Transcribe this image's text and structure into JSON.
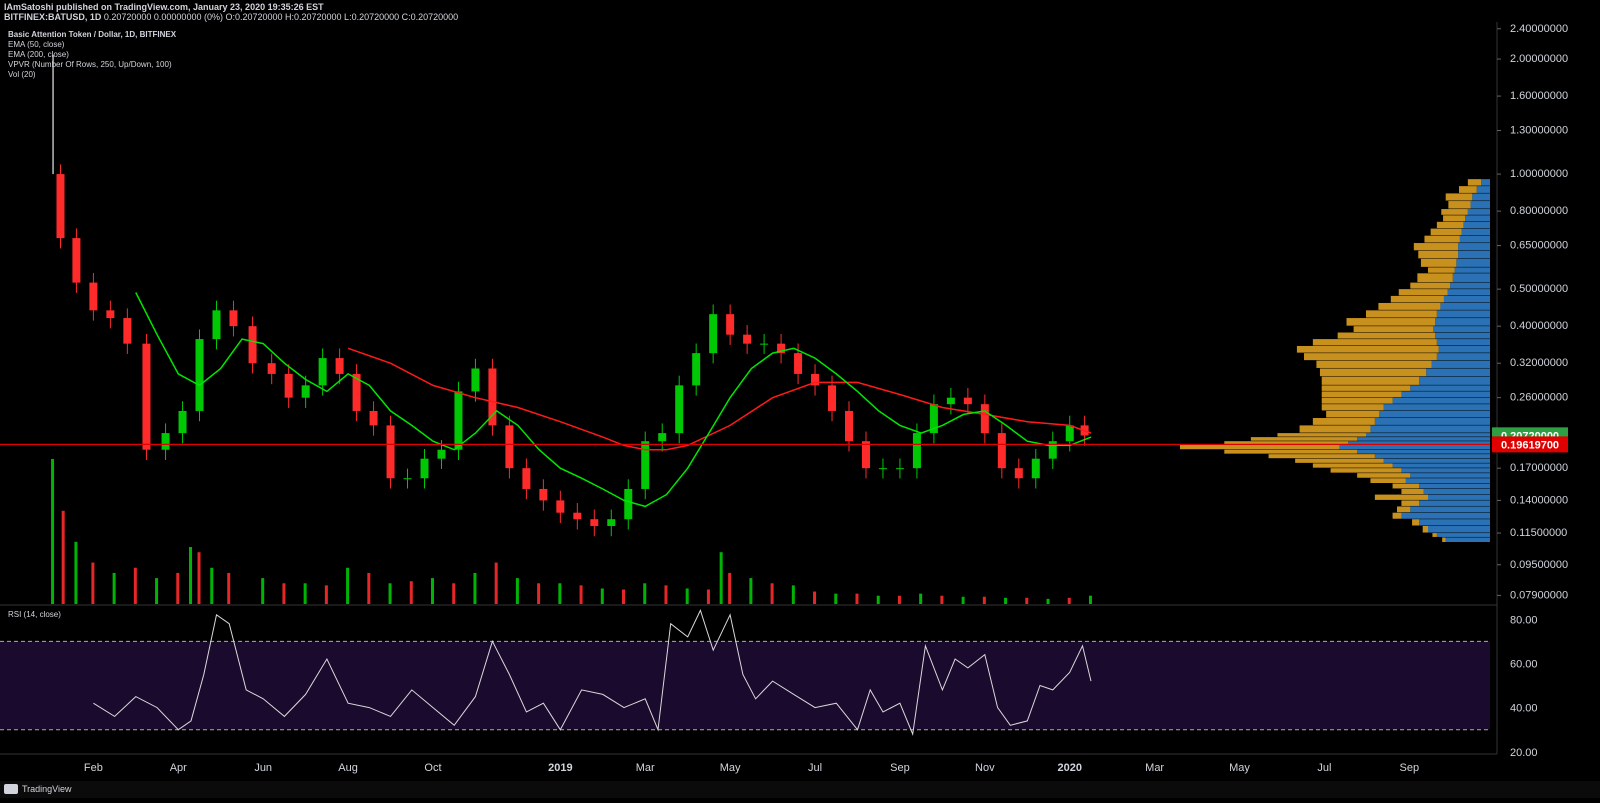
{
  "header": {
    "publisher_line": "IAmSatoshi published on TradingView.com, January 23, 2020 19:35:26 EST",
    "symbol": "BITFINEX:BATUSD, 1D",
    "ohlc": "0.20720000 0.00000000 (0%) O:0.20720000 H:0.20720000 L:0.20720000 C:0.20720000"
  },
  "indicators": {
    "title": "Basic Attention Token / Dollar, 1D, BITFINEX",
    "ema50": "EMA (50, close)",
    "ema200": "EMA (200, close)",
    "vpvr": "VPVR (Number Of Rows, 250, Up/Down, 100)",
    "vol": "Vol (20)",
    "rsi": "RSI (14, close)"
  },
  "footer": {
    "brand": "TradingView"
  },
  "colors": {
    "up": "#00c805",
    "down": "#ff2b2b",
    "ema50": "#00e600",
    "ema200": "#ff1a1a",
    "vpvr_up": "#2a72b5",
    "vpvr_down": "#c8901c",
    "last_price_badge": "#2ea043",
    "hline_badge": "#e00000",
    "rsi_band": "#1a0a2e",
    "rsi_line": "#d9d9d9"
  },
  "chart_data": {
    "type": "line",
    "price_axis": {
      "scale": "log",
      "ticks": [
        "2.40000000",
        "2.00000000",
        "1.60000000",
        "1.30000000",
        "1.00000000",
        "0.80000000",
        "0.65000000",
        "0.50000000",
        "0.40000000",
        "0.32000000",
        "0.26000000",
        "0.17000000",
        "0.14000000",
        "0.11500000",
        "0.09500000",
        "0.07900000"
      ],
      "tick_values": [
        2.4,
        2.0,
        1.6,
        1.3,
        1.0,
        0.8,
        0.65,
        0.5,
        0.4,
        0.32,
        0.26,
        0.17,
        0.14,
        0.115,
        0.095,
        0.079
      ],
      "range": [
        0.075,
        2.5
      ]
    },
    "time_axis": {
      "labels": [
        "Feb",
        "Apr",
        "Jun",
        "Aug",
        "Oct",
        "2019",
        "Mar",
        "May",
        "Jul",
        "Sep",
        "Nov",
        "2020",
        "Mar",
        "May",
        "Jul",
        "Sep"
      ],
      "label_months": [
        1,
        3,
        5,
        7,
        9,
        12,
        14,
        16,
        18,
        20,
        22,
        24,
        26,
        28,
        30,
        32
      ],
      "range_months": [
        -1.2,
        33.9
      ]
    },
    "price_series": {
      "x_months": [
        0.05,
        0.4,
        0.8,
        1.2,
        1.6,
        2.0,
        2.5,
        2.9,
        3.3,
        3.7,
        4.1,
        4.5,
        5.0,
        5.4,
        5.8,
        6.2,
        6.6,
        7.0,
        7.4,
        7.8,
        8.2,
        8.6,
        9.0,
        9.4,
        9.8,
        10.2,
        10.6,
        11.0,
        11.4,
        11.8,
        12.2,
        12.6,
        13.0,
        13.4,
        13.8,
        14.2,
        14.6,
        15.0,
        15.4,
        15.8,
        16.2,
        16.6,
        17.0,
        17.4,
        17.8,
        18.2,
        18.6,
        19.0,
        19.4,
        19.8,
        20.2,
        20.6,
        21.0,
        21.4,
        21.8,
        22.2,
        22.6,
        23.0,
        23.4,
        23.8,
        24.2,
        24.5
      ],
      "close": [
        1.0,
        0.68,
        0.52,
        0.44,
        0.42,
        0.36,
        0.19,
        0.21,
        0.24,
        0.37,
        0.44,
        0.4,
        0.32,
        0.3,
        0.26,
        0.28,
        0.33,
        0.3,
        0.24,
        0.22,
        0.16,
        0.16,
        0.18,
        0.19,
        0.27,
        0.31,
        0.22,
        0.17,
        0.15,
        0.14,
        0.13,
        0.125,
        0.12,
        0.125,
        0.15,
        0.2,
        0.21,
        0.28,
        0.34,
        0.43,
        0.38,
        0.36,
        0.36,
        0.34,
        0.3,
        0.28,
        0.24,
        0.2,
        0.17,
        0.17,
        0.17,
        0.21,
        0.25,
        0.26,
        0.25,
        0.21,
        0.17,
        0.16,
        0.18,
        0.2,
        0.22,
        0.207
      ]
    },
    "ema50": {
      "x_months": [
        2.0,
        2.5,
        3.0,
        3.5,
        4.0,
        4.5,
        5.0,
        5.5,
        6.0,
        6.5,
        7.0,
        7.5,
        8.0,
        8.5,
        9.0,
        9.5,
        10.0,
        10.5,
        11.0,
        11.5,
        12.0,
        12.5,
        13.0,
        13.5,
        14.0,
        14.5,
        15.0,
        15.5,
        16.0,
        16.5,
        17.0,
        17.5,
        18.0,
        18.5,
        19.0,
        19.5,
        20.0,
        20.5,
        21.0,
        21.5,
        22.0,
        22.5,
        23.0,
        23.5,
        24.0,
        24.5
      ],
      "values": [
        0.49,
        0.38,
        0.3,
        0.28,
        0.31,
        0.37,
        0.36,
        0.32,
        0.29,
        0.27,
        0.3,
        0.28,
        0.24,
        0.22,
        0.2,
        0.19,
        0.21,
        0.24,
        0.22,
        0.19,
        0.17,
        0.16,
        0.15,
        0.14,
        0.135,
        0.145,
        0.17,
        0.21,
        0.26,
        0.31,
        0.34,
        0.35,
        0.33,
        0.3,
        0.27,
        0.24,
        0.22,
        0.21,
        0.22,
        0.235,
        0.24,
        0.22,
        0.2,
        0.195,
        0.195,
        0.205
      ]
    },
    "ema200": {
      "x_months": [
        7.0,
        8.0,
        9.0,
        10.0,
        11.0,
        12.0,
        13.0,
        13.5,
        14.0,
        14.5,
        15.0,
        16.0,
        17.0,
        18.0,
        19.0,
        20.0,
        21.0,
        22.0,
        23.0,
        24.0,
        24.5
      ],
      "values": [
        0.35,
        0.32,
        0.28,
        0.26,
        0.245,
        0.225,
        0.205,
        0.195,
        0.19,
        0.19,
        0.195,
        0.22,
        0.26,
        0.285,
        0.285,
        0.265,
        0.245,
        0.235,
        0.225,
        0.22,
        0.21
      ]
    },
    "last_price": {
      "label": "0.20720000",
      "value": 0.2072
    },
    "horizontal_line": {
      "label": "0.19619700",
      "value": 0.196197
    },
    "rsi": {
      "ticks": [
        "80.00",
        "60.00",
        "40.00",
        "20.00"
      ],
      "tick_values": [
        80,
        60,
        40,
        20
      ],
      "range": [
        19,
        86
      ],
      "upper_band": 70,
      "lower_band": 30,
      "x_months": [
        1.0,
        1.5,
        2.0,
        2.5,
        3.0,
        3.3,
        3.6,
        3.9,
        4.2,
        4.6,
        5.0,
        5.5,
        6.0,
        6.5,
        7.0,
        7.5,
        8.0,
        8.5,
        9.0,
        9.5,
        10.0,
        10.4,
        10.8,
        11.2,
        11.6,
        12.0,
        12.5,
        13.0,
        13.5,
        14.0,
        14.3,
        14.6,
        15.0,
        15.3,
        15.6,
        16.0,
        16.3,
        16.6,
        17.0,
        17.5,
        18.0,
        18.5,
        19.0,
        19.3,
        19.6,
        20.0,
        20.3,
        20.6,
        21.0,
        21.3,
        21.6,
        22.0,
        22.3,
        22.6,
        23.0,
        23.3,
        23.6,
        24.0,
        24.3,
        24.5
      ],
      "values": [
        42,
        36,
        45,
        40,
        30,
        34,
        55,
        82,
        78,
        48,
        44,
        36,
        46,
        62,
        42,
        40,
        36,
        48,
        40,
        32,
        45,
        70,
        55,
        38,
        42,
        30,
        48,
        46,
        40,
        44,
        30,
        78,
        72,
        84,
        66,
        82,
        55,
        44,
        52,
        46,
        40,
        42,
        30,
        48,
        38,
        42,
        28,
        68,
        48,
        62,
        58,
        64,
        40,
        32,
        34,
        50,
        48,
        56,
        68,
        52
      ]
    },
    "vpvr": {
      "row_prices": [
        0.97,
        0.93,
        0.89,
        0.85,
        0.81,
        0.78,
        0.75,
        0.72,
        0.69,
        0.66,
        0.63,
        0.6,
        0.57,
        0.55,
        0.52,
        0.5,
        0.48,
        0.46,
        0.44,
        0.42,
        0.4,
        0.385,
        0.37,
        0.355,
        0.34,
        0.325,
        0.31,
        0.295,
        0.28,
        0.27,
        0.26,
        0.25,
        0.24,
        0.23,
        0.22,
        0.21,
        0.205,
        0.2,
        0.196,
        0.19,
        0.185,
        0.18,
        0.175,
        0.17,
        0.165,
        0.16,
        0.155,
        0.15,
        0.145,
        0.14,
        0.135,
        0.13,
        0.125,
        0.12,
        0.115,
        0.112
      ],
      "up_volume": [
        10,
        15,
        20,
        22,
        25,
        28,
        30,
        32,
        34,
        36,
        36,
        38,
        40,
        42,
        45,
        48,
        52,
        56,
        60,
        62,
        64,
        62,
        60,
        58,
        60,
        66,
        72,
        80,
        90,
        100,
        110,
        120,
        125,
        130,
        135,
        140,
        150,
        160,
        170,
        150,
        130,
        120,
        110,
        100,
        90,
        95,
        80,
        75,
        70,
        80,
        90,
        100,
        80,
        70,
        60,
        50
      ],
      "down_volume": [
        15,
        20,
        30,
        25,
        30,
        25,
        30,
        35,
        40,
        50,
        45,
        40,
        30,
        40,
        45,
        55,
        60,
        70,
        80,
        100,
        90,
        110,
        140,
        160,
        150,
        130,
        120,
        110,
        100,
        90,
        80,
        70,
        60,
        70,
        80,
        100,
        120,
        140,
        180,
        150,
        120,
        100,
        90,
        80,
        60,
        40,
        30,
        25,
        60,
        20,
        15,
        10,
        8,
        6,
        5,
        4
      ]
    },
    "volume": {
      "note": "",
      "x_months": [
        0.05,
        0.3,
        0.6,
        1.0,
        1.5,
        2.0,
        2.5,
        3.0,
        3.3,
        3.5,
        3.8,
        4.2,
        5.0,
        5.5,
        6.0,
        6.5,
        7.0,
        7.5,
        8.0,
        8.5,
        9.0,
        9.5,
        10.0,
        10.5,
        11.0,
        11.5,
        12.0,
        12.5,
        13.0,
        13.5,
        14.0,
        14.5,
        15.0,
        15.5,
        15.8,
        16.0,
        16.5,
        17.0,
        17.5,
        18.0,
        18.5,
        19.0,
        19.5,
        20.0,
        20.5,
        21.0,
        21.5,
        22.0,
        22.5,
        23.0,
        23.5,
        24.0,
        24.5
      ],
      "values": [
        140,
        90,
        60,
        40,
        30,
        35,
        25,
        30,
        55,
        50,
        35,
        30,
        25,
        20,
        20,
        18,
        35,
        30,
        20,
        22,
        25,
        20,
        30,
        40,
        25,
        20,
        20,
        18,
        15,
        14,
        20,
        18,
        15,
        14,
        50,
        30,
        25,
        20,
        18,
        12,
        10,
        10,
        8,
        8,
        10,
        8,
        7,
        7,
        6,
        6,
        5,
        6,
        8
      ]
    }
  }
}
